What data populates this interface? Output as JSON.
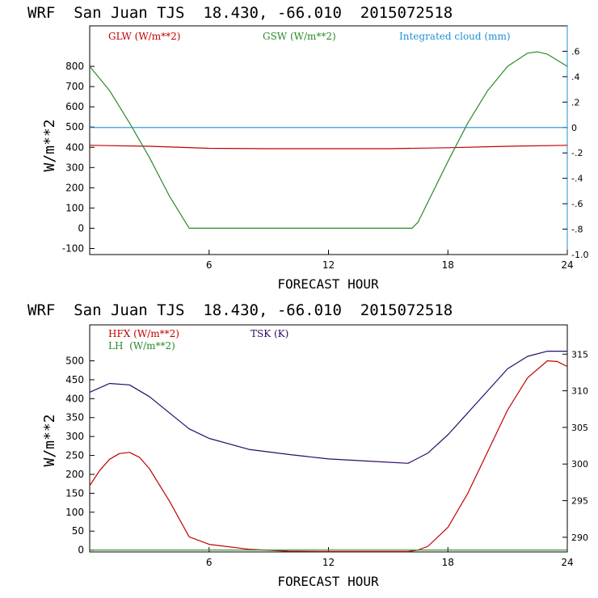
{
  "colors": {
    "red": "#c00000",
    "green": "#2a8a2a",
    "blue": "#1e90d6",
    "purple": "#2a0a6a"
  },
  "chart_data": [
    {
      "type": "line",
      "title": "WRF  San Juan TJS  18.430, -66.010  2015072518",
      "xlabel": "FORECAST HOUR",
      "ylabel": "W/m**2",
      "xlim": [
        0,
        24
      ],
      "ylim": [
        -130,
        1000
      ],
      "x_ticks": [
        6,
        12,
        18,
        24
      ],
      "y_ticks": [
        -100,
        0,
        100,
        200,
        300,
        400,
        500,
        600,
        700,
        800
      ],
      "y2lim": [
        -1.0,
        0.8
      ],
      "y2_ticks": [
        -1.0,
        -0.8,
        -0.6,
        -0.4,
        -0.2,
        0,
        0.2,
        0.4,
        0.6
      ],
      "y2_tick_labels": [
        "-1.0",
        "-.8",
        "-.6",
        "-.4",
        "-.2",
        "0",
        ".2",
        ".4",
        ".6"
      ],
      "legend": [
        "GLW (W/m**2)",
        "GSW (W/m**2)",
        "Integrated cloud (mm)"
      ],
      "series": [
        {
          "name": "GLW (W/m**2)",
          "axis": "left",
          "color": "red",
          "x": [
            0,
            3,
            6,
            9,
            12,
            15,
            18,
            21,
            24
          ],
          "y": [
            410,
            405,
            395,
            393,
            393,
            393,
            398,
            405,
            410
          ]
        },
        {
          "name": "GSW (W/m**2)",
          "axis": "left",
          "color": "green",
          "x": [
            0,
            1,
            2,
            3,
            4,
            5,
            6,
            10,
            15,
            16.2,
            16.5,
            17,
            18,
            19,
            20,
            21,
            22,
            22.5,
            23,
            24
          ],
          "y": [
            800,
            680,
            520,
            350,
            160,
            0,
            0,
            0,
            0,
            0,
            30,
            130,
            330,
            520,
            680,
            800,
            865,
            872,
            860,
            800
          ]
        },
        {
          "name": "Integrated cloud (mm)",
          "axis": "right",
          "color": "blue",
          "x": [
            0,
            24
          ],
          "y": [
            0.0,
            0.0
          ]
        }
      ]
    },
    {
      "type": "line",
      "title": "WRF  San Juan TJS  18.430, -66.010  2015072518",
      "xlabel": "FORECAST HOUR",
      "ylabel": "W/m**2",
      "xlim": [
        0,
        24
      ],
      "ylim": [
        -5,
        595
      ],
      "x_ticks": [
        6,
        12,
        18,
        24
      ],
      "y_ticks": [
        0,
        50,
        100,
        150,
        200,
        250,
        300,
        350,
        400,
        450,
        500
      ],
      "y2lim": [
        288,
        319
      ],
      "y2_ticks": [
        290,
        295,
        300,
        305,
        310,
        315
      ],
      "y2_tick_labels": [
        "290",
        "295",
        "300",
        "305",
        "310",
        "315"
      ],
      "legend": [
        "HFX (W/m**2)",
        "LH  (W/m**2)",
        "TSK (K)"
      ],
      "series": [
        {
          "name": "HFX (W/m**2)",
          "axis": "left",
          "color": "red",
          "x": [
            0,
            0.5,
            1,
            1.5,
            2,
            2.5,
            3,
            4,
            5,
            6,
            8,
            10,
            12,
            14,
            15,
            16,
            16.5,
            17,
            18,
            19,
            20,
            21,
            22,
            23,
            23.5,
            24
          ],
          "y": [
            170,
            210,
            240,
            255,
            258,
            245,
            215,
            130,
            35,
            15,
            2,
            -3,
            -4,
            -4,
            -4,
            -4,
            0,
            10,
            60,
            150,
            260,
            370,
            455,
            500,
            498,
            485
          ]
        },
        {
          "name": "LH  (W/m**2)",
          "axis": "left",
          "color": "green",
          "x": [
            0,
            24
          ],
          "y": [
            0,
            0
          ]
        },
        {
          "name": "TSK (K)",
          "axis": "right",
          "color": "purple",
          "x": [
            0,
            1,
            2,
            3,
            4,
            5,
            6,
            8,
            10,
            12,
            14,
            16,
            17,
            18,
            19,
            20,
            21,
            22,
            23,
            24
          ],
          "y": [
            309.8,
            311.0,
            310.8,
            309.2,
            307.0,
            304.8,
            303.5,
            302.0,
            301.3,
            300.7,
            300.4,
            300.1,
            301.5,
            304.0,
            307.0,
            310.0,
            313.0,
            314.7,
            315.4,
            315.4
          ]
        }
      ]
    }
  ]
}
